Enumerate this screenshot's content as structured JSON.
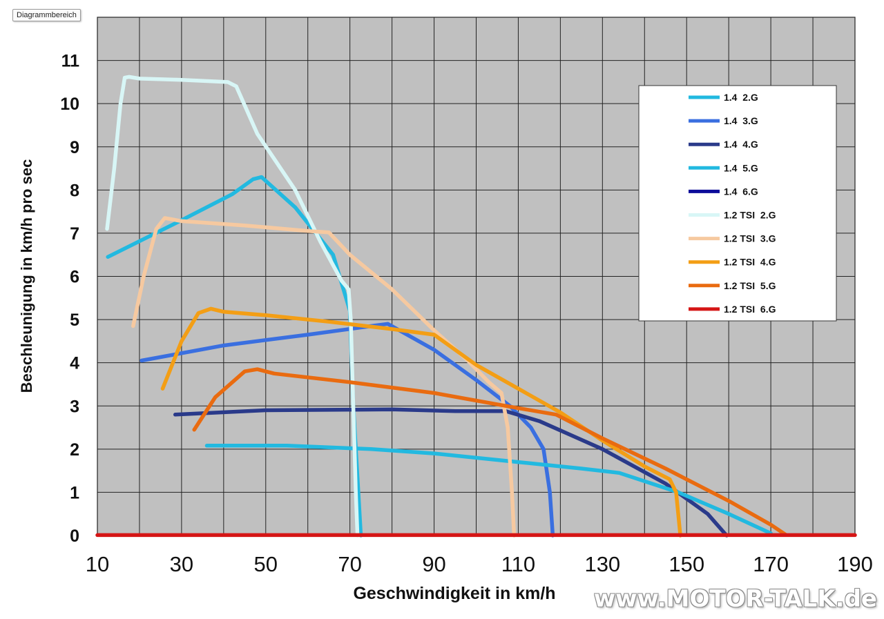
{
  "tooltip": "Diagrammbereich",
  "watermark": "www.MOTOR-TALK.de",
  "chart_data": {
    "type": "line",
    "xlabel": "Geschwindigkeit in km/h",
    "ylabel": "Beschleunigung in km/h pro sec",
    "xlim": [
      10,
      190
    ],
    "ylim": [
      0,
      12
    ],
    "xticks": [
      10,
      30,
      50,
      70,
      90,
      110,
      130,
      150,
      170,
      190
    ],
    "yticks": [
      0,
      1,
      2,
      3,
      4,
      5,
      6,
      7,
      8,
      9,
      10,
      11
    ],
    "grid": true,
    "legend_position": "top-right",
    "background": "#c0c0c0",
    "series": [
      {
        "name": "1.4  2.G",
        "color": "#22b9e0",
        "points": [
          [
            12.5,
            6.45
          ],
          [
            30,
            7.3
          ],
          [
            42,
            7.9
          ],
          [
            47,
            8.25
          ],
          [
            49,
            8.3
          ],
          [
            57,
            7.6
          ],
          [
            66,
            6.5
          ],
          [
            70,
            5.2
          ],
          [
            70.8,
            3.0
          ],
          [
            72,
            1.0
          ],
          [
            72.6,
            0
          ]
        ]
      },
      {
        "name": "1.4  3.G",
        "color": "#3a6fe0",
        "points": [
          [
            20.5,
            4.05
          ],
          [
            40,
            4.4
          ],
          [
            60,
            4.65
          ],
          [
            75,
            4.85
          ],
          [
            79,
            4.9
          ],
          [
            90,
            4.3
          ],
          [
            100,
            3.6
          ],
          [
            108,
            3.0
          ],
          [
            113,
            2.5
          ],
          [
            116,
            2.0
          ],
          [
            117.5,
            1.0
          ],
          [
            118.2,
            0
          ]
        ]
      },
      {
        "name": "1.4  4.G",
        "color": "#2a3a8a",
        "points": [
          [
            28.5,
            2.8
          ],
          [
            50,
            2.9
          ],
          [
            80,
            2.92
          ],
          [
            95,
            2.88
          ],
          [
            107,
            2.88
          ],
          [
            115,
            2.65
          ],
          [
            130,
            2.0
          ],
          [
            145,
            1.2
          ],
          [
            155,
            0.5
          ],
          [
            159.5,
            0
          ]
        ]
      },
      {
        "name": "1.4  5.G",
        "color": "#22b9e0",
        "points": [
          [
            36,
            2.08
          ],
          [
            55,
            2.08
          ],
          [
            75,
            2.0
          ],
          [
            90,
            1.9
          ],
          [
            110,
            1.7
          ],
          [
            125,
            1.55
          ],
          [
            134,
            1.45
          ],
          [
            148,
            1.0
          ],
          [
            160,
            0.5
          ],
          [
            170,
            0.05
          ]
        ]
      },
      {
        "name": "1.4  6.G",
        "color": "#0c0c9a",
        "points": []
      },
      {
        "name": "1.2 TSI  2.G",
        "color": "#d8f6f6",
        "points": [
          [
            12.3,
            7.1
          ],
          [
            14,
            8.5
          ],
          [
            15.5,
            10.0
          ],
          [
            16.5,
            10.6
          ],
          [
            17.5,
            10.62
          ],
          [
            20,
            10.58
          ],
          [
            30,
            10.55
          ],
          [
            41,
            10.5
          ],
          [
            43,
            10.4
          ],
          [
            48,
            9.3
          ],
          [
            57,
            8.0
          ],
          [
            63,
            6.8
          ],
          [
            68,
            5.9
          ],
          [
            69.7,
            5.7
          ],
          [
            70.2,
            5.0
          ],
          [
            70.8,
            3.0
          ],
          [
            71.4,
            1.0
          ],
          [
            71.8,
            0
          ]
        ]
      },
      {
        "name": "1.2 TSI  3.G",
        "color": "#f6c9a0",
        "points": [
          [
            18.5,
            4.85
          ],
          [
            21,
            6.0
          ],
          [
            24,
            7.1
          ],
          [
            26,
            7.35
          ],
          [
            30,
            7.28
          ],
          [
            45,
            7.18
          ],
          [
            60,
            7.05
          ],
          [
            65,
            7.02
          ],
          [
            70,
            6.5
          ],
          [
            80,
            5.7
          ],
          [
            90,
            4.75
          ],
          [
            98,
            4.05
          ],
          [
            103,
            3.55
          ],
          [
            106,
            3.3
          ],
          [
            107.5,
            2.5
          ],
          [
            108.5,
            1.0
          ],
          [
            109,
            0
          ]
        ]
      },
      {
        "name": "1.2 TSI  4.G",
        "color": "#f39e15",
        "points": [
          [
            25.5,
            3.4
          ],
          [
            30,
            4.5
          ],
          [
            34,
            5.15
          ],
          [
            37,
            5.25
          ],
          [
            40,
            5.18
          ],
          [
            50,
            5.1
          ],
          [
            65,
            4.95
          ],
          [
            80,
            4.78
          ],
          [
            90,
            4.65
          ],
          [
            100,
            3.95
          ],
          [
            110,
            3.4
          ],
          [
            120,
            2.85
          ],
          [
            130,
            2.2
          ],
          [
            140,
            1.6
          ],
          [
            146,
            1.3
          ],
          [
            147.5,
            1.0
          ],
          [
            148.5,
            0
          ]
        ]
      },
      {
        "name": "1.2 TSI  5.G",
        "color": "#e96b10",
        "points": [
          [
            33,
            2.45
          ],
          [
            38,
            3.2
          ],
          [
            45,
            3.8
          ],
          [
            48,
            3.85
          ],
          [
            52,
            3.75
          ],
          [
            70,
            3.55
          ],
          [
            90,
            3.3
          ],
          [
            110,
            2.95
          ],
          [
            119,
            2.8
          ],
          [
            130,
            2.25
          ],
          [
            145,
            1.55
          ],
          [
            160,
            0.8
          ],
          [
            170,
            0.25
          ],
          [
            173.5,
            0.02
          ]
        ]
      },
      {
        "name": "1.2 TSI  6.G",
        "color": "#d51515",
        "points": [
          [
            10,
            0.01
          ],
          [
            190,
            0.01
          ]
        ]
      }
    ]
  }
}
